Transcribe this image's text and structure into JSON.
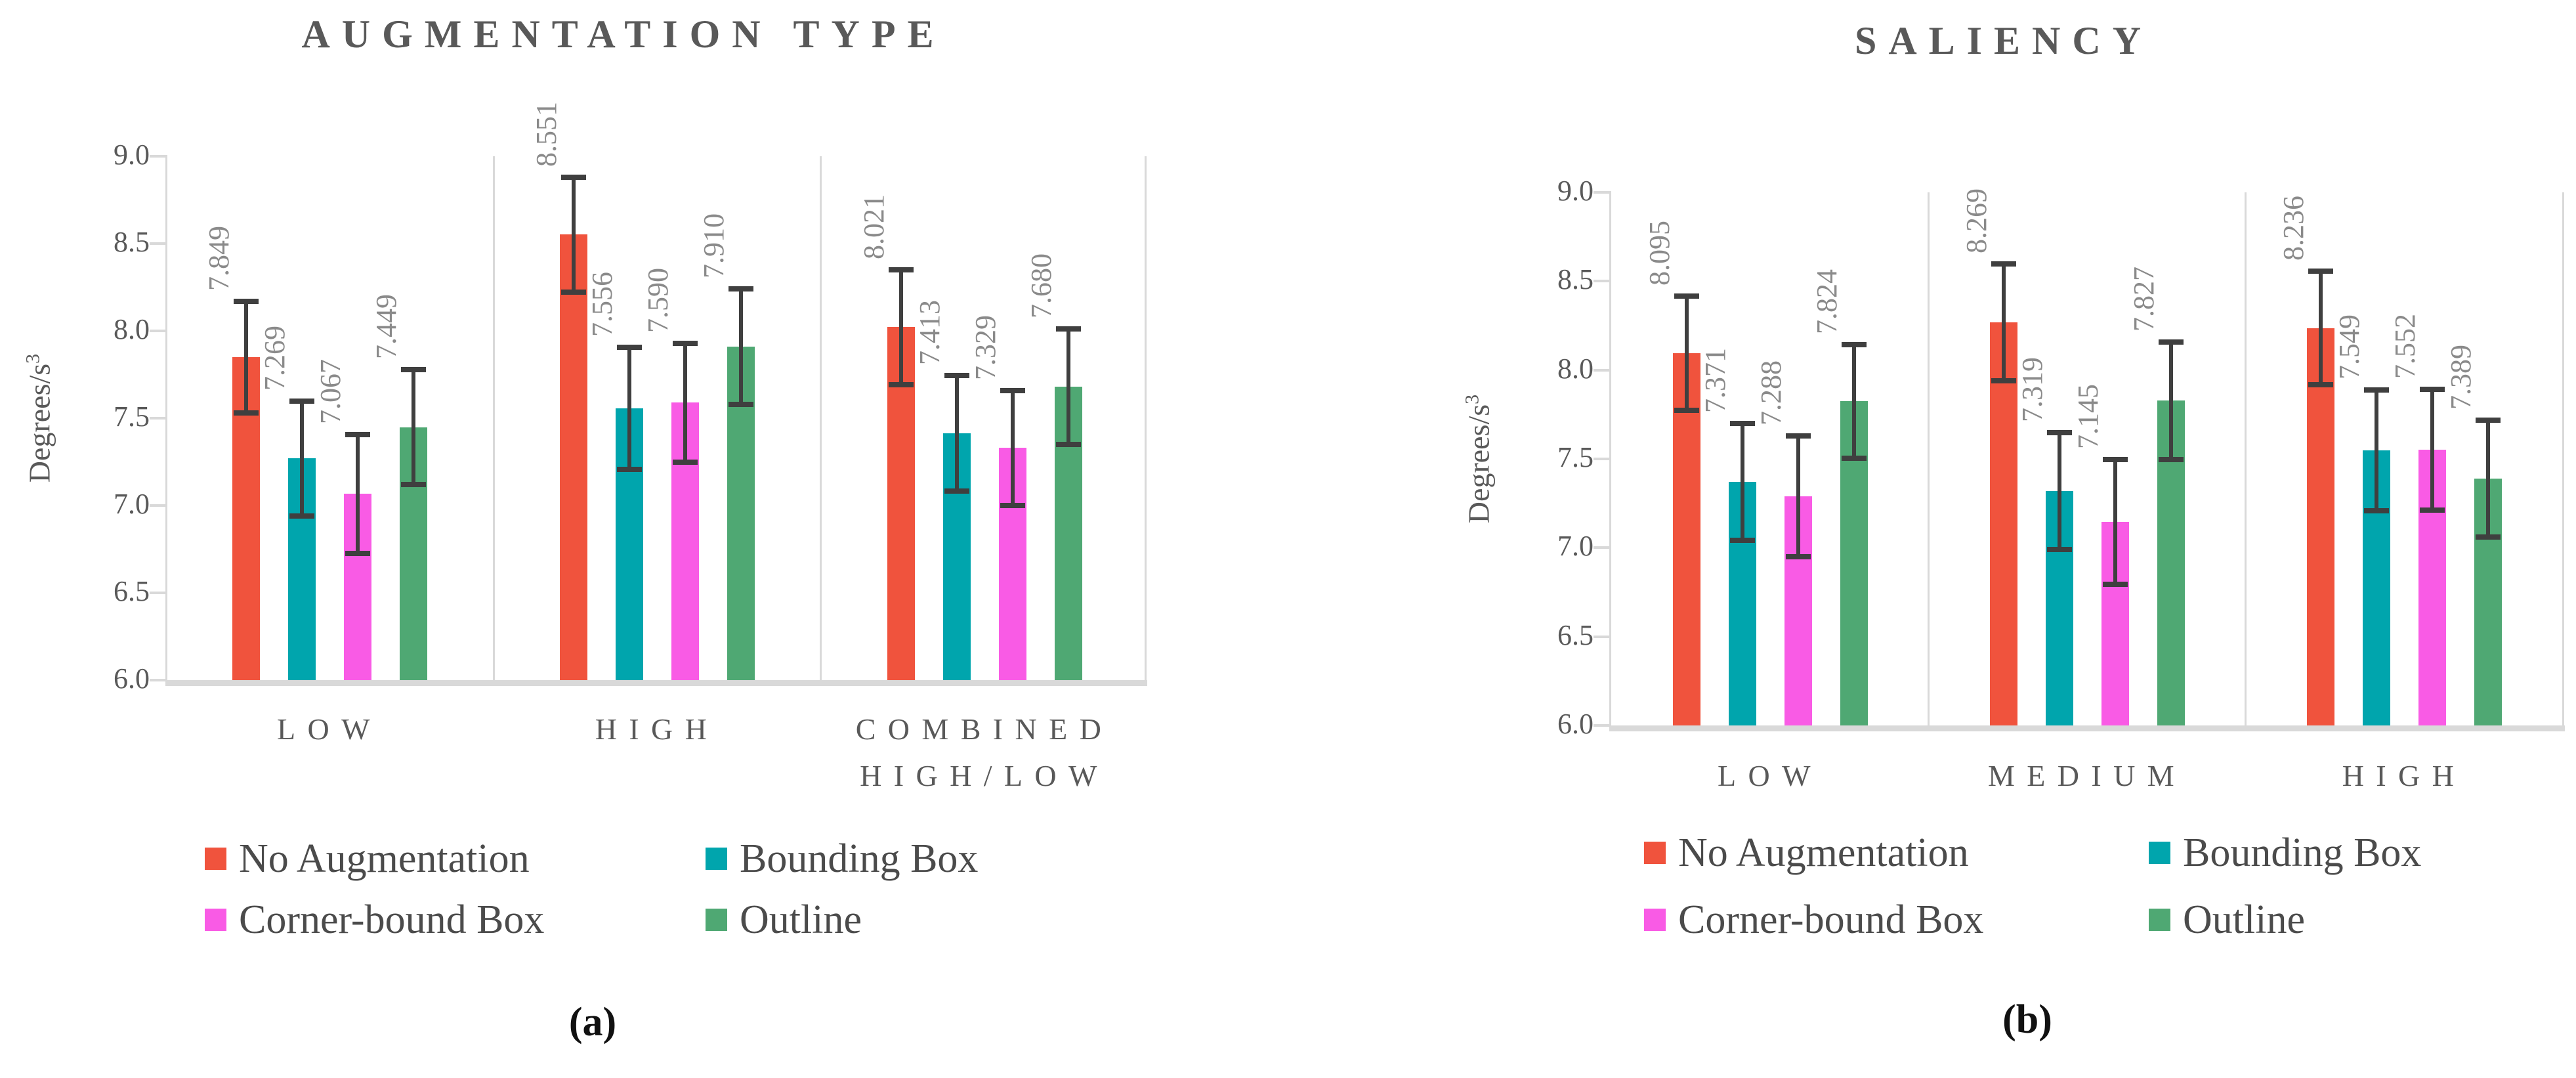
{
  "figure": {
    "background": "#FFFFFF",
    "captions": [
      "(a)",
      "(b)"
    ]
  },
  "style": {
    "axis_color": "#D9D9D9",
    "error_bar_color": "#3F3F3F",
    "title_color": "#595959",
    "tick_label_color": "#595959",
    "category_label_color": "#595959",
    "value_label_color": "#8A8A8A",
    "legend_text_color": "#4B4B4B"
  },
  "chart_data": [
    {
      "type": "bar",
      "title": "AUGMENTATION TYPE",
      "ylabel": "Degrees/s³",
      "ylabel_base": "Degrees/s",
      "ylabel_exponent": "3",
      "caption": "(a)",
      "categories": [
        "LOW",
        "HIGH",
        "COMBINED\nHIGH/LOW"
      ],
      "ylim": [
        6.0,
        9.0
      ],
      "ytick_step": 0.5,
      "yticks": [
        "6.0",
        "6.5",
        "7.0",
        "7.5",
        "8.0",
        "8.5",
        "9.0"
      ],
      "grid": "vertical category dividers only",
      "legend_position": "bottom, two columns",
      "value_labels": "3 decimals, rotated 90deg, above error bars",
      "error_bars": "symmetric, cap style",
      "series": [
        {
          "name": "No Augmentation",
          "color": "#F0533D",
          "values": [
            7.849,
            8.551,
            8.021
          ],
          "errors": [
            0.32,
            0.33,
            0.33
          ]
        },
        {
          "name": "Bounding Box",
          "color": "#00A5AD",
          "values": [
            7.269,
            7.556,
            7.413
          ],
          "errors": [
            0.33,
            0.35,
            0.33
          ]
        },
        {
          "name": "Corner-bound Box",
          "color": "#F95BE5",
          "values": [
            7.067,
            7.59,
            7.329
          ],
          "errors": [
            0.34,
            0.34,
            0.33
          ]
        },
        {
          "name": "Outline",
          "color": "#4FA873",
          "values": [
            7.449,
            7.91,
            7.68
          ],
          "errors": [
            0.33,
            0.33,
            0.33
          ]
        }
      ]
    },
    {
      "type": "bar",
      "title": "SALIENCY",
      "ylabel": "Degrees/s³",
      "ylabel_base": "Degrees/s",
      "ylabel_exponent": "3",
      "caption": "(b)",
      "categories": [
        "LOW",
        "MEDIUM",
        "HIGH"
      ],
      "ylim": [
        6.0,
        9.0
      ],
      "ytick_step": 0.5,
      "yticks": [
        "6.0",
        "6.5",
        "7.0",
        "7.5",
        "8.0",
        "8.5",
        "9.0"
      ],
      "grid": "vertical category dividers only",
      "legend_position": "bottom, two columns",
      "value_labels": "3 decimals, rotated 90deg, above error bars",
      "error_bars": "symmetric, cap style",
      "series": [
        {
          "name": "No Augmentation",
          "color": "#F0533D",
          "values": [
            8.095,
            8.269,
            8.236
          ],
          "errors": [
            0.32,
            0.33,
            0.32
          ]
        },
        {
          "name": "Bounding Box",
          "color": "#00A5AD",
          "values": [
            7.371,
            7.319,
            7.549
          ],
          "errors": [
            0.33,
            0.33,
            0.34
          ]
        },
        {
          "name": "Corner-bound Box",
          "color": "#F95BE5",
          "values": [
            7.288,
            7.145,
            7.552
          ],
          "errors": [
            0.34,
            0.35,
            0.34
          ]
        },
        {
          "name": "Outline",
          "color": "#4FA873",
          "values": [
            7.824,
            7.827,
            7.389
          ],
          "errors": [
            0.32,
            0.33,
            0.33
          ]
        }
      ]
    }
  ]
}
